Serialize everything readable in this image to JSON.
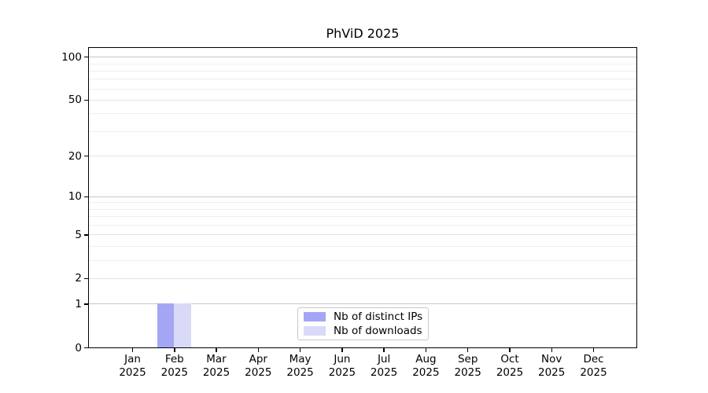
{
  "figure": {
    "title": "PhViD 2025"
  },
  "chart_data": {
    "type": "bar",
    "title": "PhViD 2025",
    "categories": [
      "Jan",
      "Feb",
      "Mar",
      "Apr",
      "May",
      "Jun",
      "Jul",
      "Aug",
      "Sep",
      "Oct",
      "Nov",
      "Dec"
    ],
    "year_label": "2025",
    "series": [
      {
        "name": "Nb of distinct IPs",
        "color": "#a5a5f5",
        "values": [
          0,
          1,
          0,
          0,
          0,
          0,
          0,
          0,
          0,
          0,
          0,
          0
        ]
      },
      {
        "name": "Nb of downloads",
        "color": "#d9d9f8",
        "values": [
          0,
          1,
          0,
          0,
          0,
          0,
          0,
          0,
          0,
          0,
          0,
          0
        ]
      }
    ],
    "yscale": "log1p",
    "ylim": [
      0,
      115
    ],
    "y_ticks": [
      0,
      1,
      2,
      5,
      10,
      20,
      50,
      100
    ],
    "y_decade_ticks": [
      1,
      10,
      100
    ],
    "y_minor_gridlines": [
      3,
      4,
      6,
      7,
      8,
      9,
      30,
      40,
      60,
      70,
      80,
      90
    ],
    "grid": true,
    "xlabel": "",
    "ylabel": "",
    "legend": {
      "position": "lower center",
      "entries": [
        "Nb of distinct IPs",
        "Nb of downloads"
      ]
    }
  }
}
